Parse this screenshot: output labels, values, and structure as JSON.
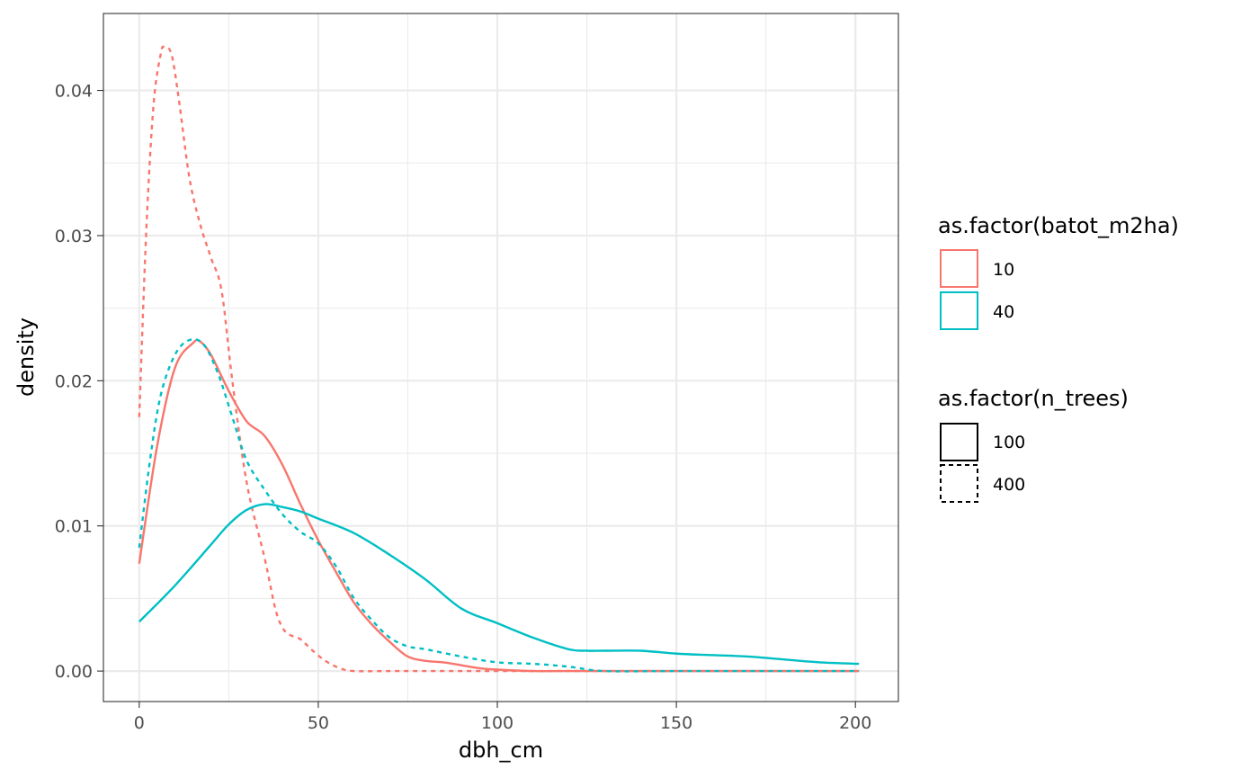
{
  "chart_data": {
    "type": "line",
    "subtype": "density",
    "xlabel": "dbh_cm",
    "ylabel": "density",
    "xlim": [
      -10,
      212
    ],
    "ylim": [
      -0.0021,
      0.0453
    ],
    "x_ticks": [
      0,
      50,
      100,
      150,
      200
    ],
    "x_tick_labels": [
      "0",
      "50",
      "100",
      "150",
      "200"
    ],
    "y_ticks": [
      0,
      0.01,
      0.02,
      0.03,
      0.04
    ],
    "y_tick_labels": [
      "0.00",
      "0.01",
      "0.02",
      "0.03",
      "0.04"
    ],
    "grid": true,
    "legend_position": "right",
    "legends": [
      {
        "title": "as.factor(batot_m2ha)",
        "kind": "color",
        "entries": [
          {
            "label": "10",
            "color": "#F8766D"
          },
          {
            "label": "40",
            "color": "#00BFC4"
          }
        ]
      },
      {
        "title": "as.factor(n_trees)",
        "kind": "linetype",
        "entries": [
          {
            "label": "100",
            "linetype": "solid"
          },
          {
            "label": "400",
            "linetype": "dashed"
          }
        ]
      }
    ],
    "series": [
      {
        "color_group": "10",
        "linetype_group": "100",
        "color": "#F8766D",
        "linetype": "solid",
        "x": [
          0,
          5,
          10,
          15,
          17,
          20,
          25,
          30,
          35,
          40,
          45,
          50,
          55,
          60,
          65,
          70,
          75,
          80,
          85,
          90,
          95,
          100,
          110,
          120,
          150,
          201
        ],
        "y": [
          0.0074,
          0.0155,
          0.0209,
          0.0226,
          0.0227,
          0.0218,
          0.0193,
          0.0172,
          0.0162,
          0.0142,
          0.0115,
          0.009,
          0.0068,
          0.0047,
          0.0032,
          0.002,
          0.001,
          0.0007,
          0.0006,
          0.0004,
          0.0002,
          0.0001,
          0.0,
          0.0,
          0.0,
          0.0
        ]
      },
      {
        "color_group": "10",
        "linetype_group": "400",
        "color": "#F8766D",
        "linetype": "dashed",
        "x": [
          0,
          2,
          4,
          6,
          7,
          9,
          11,
          14,
          17,
          20,
          23,
          26,
          30,
          35,
          38,
          40,
          42,
          45,
          48,
          52,
          56,
          60,
          70,
          100,
          150,
          201
        ],
        "y": [
          0.0175,
          0.0305,
          0.039,
          0.0425,
          0.043,
          0.0425,
          0.0395,
          0.034,
          0.0308,
          0.0285,
          0.0262,
          0.02,
          0.013,
          0.0078,
          0.0043,
          0.003,
          0.0025,
          0.0022,
          0.0015,
          0.0007,
          0.0002,
          0.0,
          0.0,
          0.0,
          0.0,
          0.0
        ]
      },
      {
        "color_group": "40",
        "linetype_group": "100",
        "color": "#00BFC4",
        "linetype": "solid",
        "x": [
          0,
          10,
          20,
          25,
          30,
          35,
          40,
          45,
          50,
          60,
          70,
          80,
          90,
          100,
          110,
          120,
          125,
          130,
          140,
          150,
          160,
          170,
          180,
          190,
          201
        ],
        "y": [
          0.0034,
          0.0059,
          0.0087,
          0.0101,
          0.0111,
          0.0115,
          0.0113,
          0.011,
          0.0105,
          0.0095,
          0.008,
          0.0063,
          0.0043,
          0.0033,
          0.0023,
          0.0015,
          0.0014,
          0.0014,
          0.0014,
          0.0012,
          0.0011,
          0.001,
          0.0008,
          0.0006,
          0.0005
        ]
      },
      {
        "color_group": "40",
        "linetype_group": "400",
        "color": "#00BFC4",
        "linetype": "dashed",
        "x": [
          0,
          3,
          6,
          10,
          14,
          18,
          22,
          26,
          30,
          35,
          40,
          45,
          50,
          55,
          60,
          65,
          70,
          75,
          80,
          90,
          100,
          110,
          120,
          130,
          150,
          201
        ],
        "y": [
          0.0085,
          0.0145,
          0.019,
          0.0218,
          0.0228,
          0.0225,
          0.0205,
          0.0175,
          0.0145,
          0.0125,
          0.0108,
          0.0096,
          0.0088,
          0.0072,
          0.005,
          0.0035,
          0.0023,
          0.0017,
          0.0015,
          0.001,
          0.0006,
          0.0005,
          0.0003,
          0.0,
          0.0,
          0.0
        ]
      }
    ]
  }
}
